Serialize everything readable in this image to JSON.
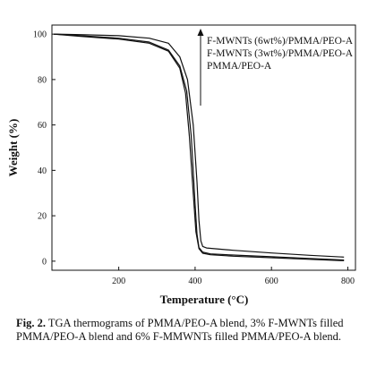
{
  "chart_data": {
    "type": "line",
    "xlabel": "Temperature (°C)",
    "ylabel": "Weight (%)",
    "xlim": [
      25,
      820
    ],
    "ylim": [
      -4,
      104
    ],
    "xticks": [
      200,
      400,
      600,
      800
    ],
    "yticks": [
      0,
      20,
      40,
      60,
      80,
      100
    ],
    "legend_position": "top-right",
    "legend_arrow": "up",
    "series": [
      {
        "name": "F-MWNTs (6wt%)/PMMA/PEO-A",
        "x": [
          30,
          100,
          200,
          280,
          330,
          360,
          380,
          395,
          405,
          410,
          415,
          420,
          430,
          450,
          500,
          600,
          700,
          790
        ],
        "y": [
          100,
          99.8,
          99.3,
          98.2,
          96,
          90,
          80,
          60,
          35,
          18,
          9,
          6.5,
          5.8,
          5.5,
          4.8,
          3.6,
          2.6,
          1.8
        ]
      },
      {
        "name": "F-MWNTs (3wt%)/PMMA/PEO-A",
        "x": [
          30,
          100,
          200,
          280,
          330,
          360,
          378,
          390,
          400,
          405,
          410,
          420,
          440,
          500,
          600,
          700,
          790
        ],
        "y": [
          100,
          99.3,
          98.2,
          96.5,
          93,
          86,
          75,
          55,
          25,
          12,
          6,
          4,
          3.2,
          2.7,
          2,
          1.2,
          0.5
        ]
      },
      {
        "name": "PMMA/PEO-A",
        "x": [
          30,
          100,
          200,
          280,
          330,
          360,
          375,
          385,
          395,
          402,
          410,
          420,
          440,
          500,
          600,
          700,
          790
        ],
        "y": [
          100,
          99,
          97.8,
          96,
          92.5,
          85,
          74,
          55,
          30,
          13,
          5.5,
          3.5,
          2.8,
          2.2,
          1.5,
          0.8,
          0.2
        ]
      }
    ]
  },
  "caption": {
    "label": "Fig. 2.",
    "text": " TGA thermograms of PMMA/PEO-A blend, 3% F-MWNTs filled PMMA/PEO-A blend and 6% F-MMWNTs filled PMMA/PEO-A blend."
  },
  "colors": {
    "line": "#111111"
  }
}
